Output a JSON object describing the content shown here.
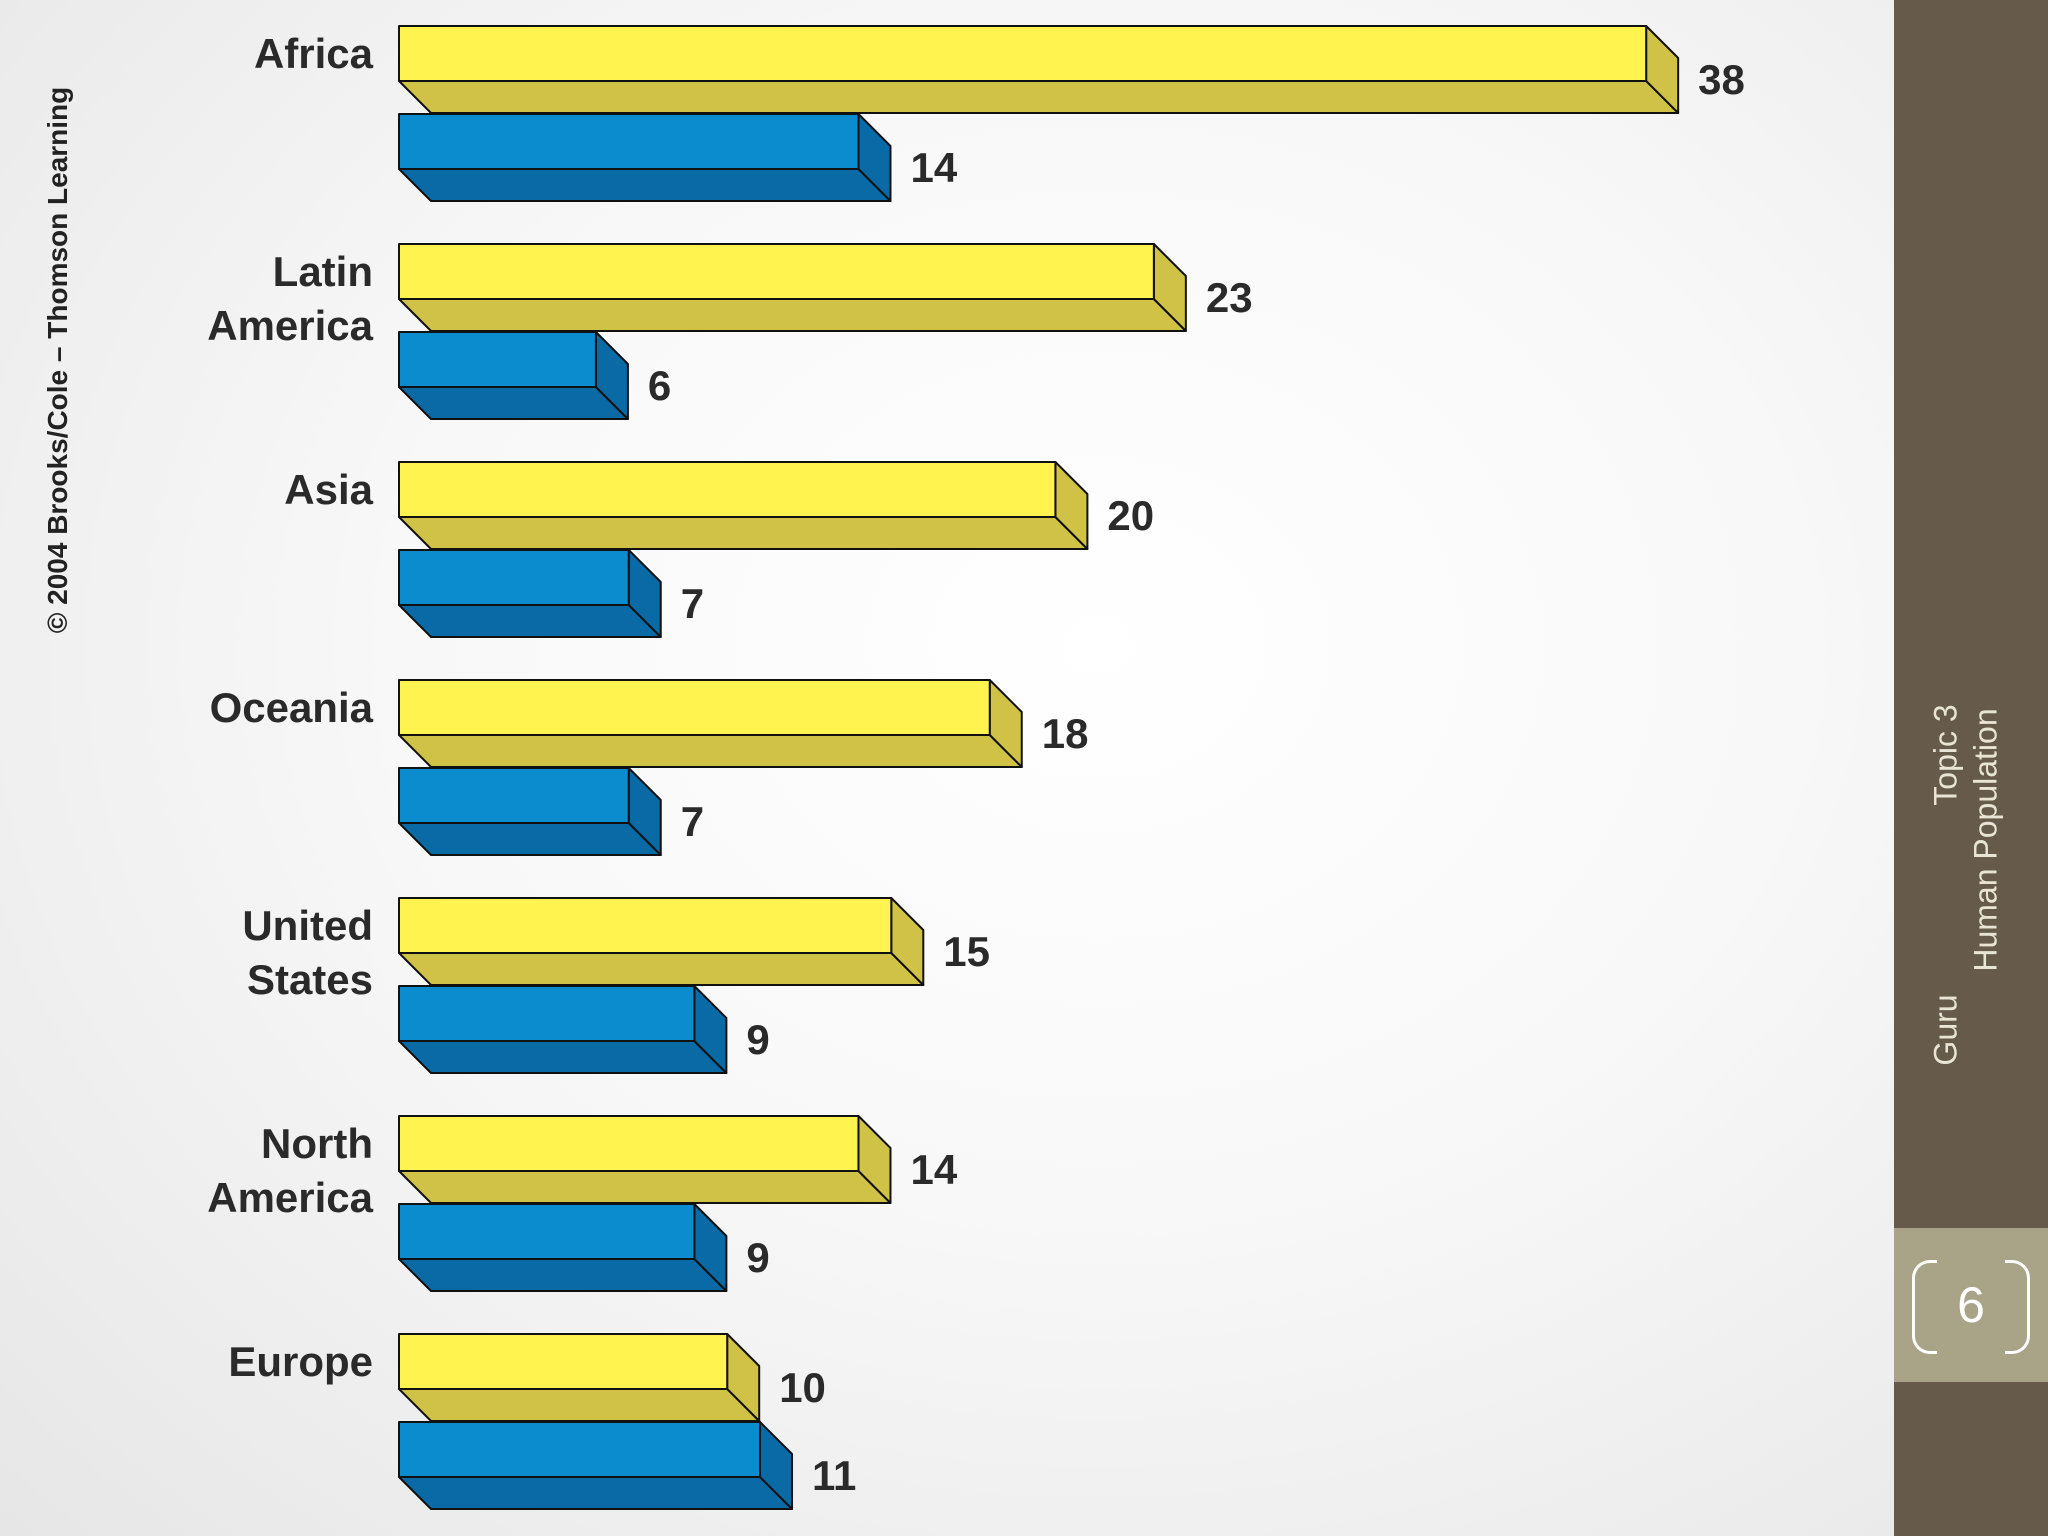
{
  "copyright": "© 2004 Brooks/Cole – Thomson Learning",
  "footer": {
    "topic": "Topic 3",
    "course": "Human Population",
    "author": "Guru",
    "slide_number": "6"
  },
  "colors": {
    "yellow_front": "#fff44f",
    "yellow_side": "#cfc247",
    "blue_front": "#0b8ccf",
    "blue_side": "#0a6aa6",
    "panel": "#665b4a",
    "number_band": "#a9a488"
  },
  "chart_data": {
    "type": "bar",
    "orientation": "horizontal",
    "style": "3d",
    "categories": [
      "Africa",
      "Latin America",
      "Asia",
      "Oceania",
      "United States",
      "North America",
      "Europe"
    ],
    "category_lines": [
      [
        "Africa"
      ],
      [
        "Latin",
        "America"
      ],
      [
        "Asia"
      ],
      [
        "Oceania"
      ],
      [
        "United",
        "States"
      ],
      [
        "North",
        "America"
      ],
      [
        "Europe"
      ]
    ],
    "series": [
      {
        "color": "#fff44f",
        "values": [
          38,
          23,
          20,
          18,
          15,
          14,
          10
        ]
      },
      {
        "color": "#0b8ccf",
        "values": [
          14,
          6,
          7,
          7,
          9,
          9,
          11
        ]
      }
    ],
    "data_labels": true,
    "grid": false,
    "legend": "none"
  }
}
